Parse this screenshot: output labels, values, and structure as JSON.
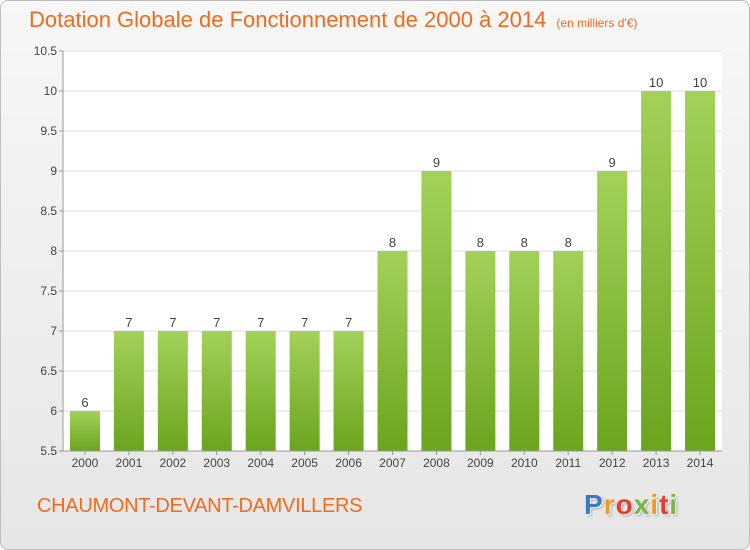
{
  "header": {
    "title": "Dotation Globale de Fonctionnement de 2000 à 2014",
    "subtitle": "(en milliers d'€)"
  },
  "commune": "CHAUMONT-DEVANT-DAMVILLERS",
  "logo": {
    "letters": [
      "P",
      "r",
      "o",
      "x",
      "i",
      "t",
      "i"
    ],
    "colors": [
      "#3a78c9",
      "#f29a1e",
      "#e63d2f",
      "#74b843",
      "#f29a1e",
      "#e63d2f",
      "#74b843"
    ]
  },
  "chart_data": {
    "type": "bar",
    "title": "Dotation Globale de Fonctionnement de 2000 à 2014",
    "categories": [
      "2000",
      "2001",
      "2002",
      "2003",
      "2004",
      "2005",
      "2006",
      "2007",
      "2008",
      "2009",
      "2010",
      "2011",
      "2012",
      "2013",
      "2014"
    ],
    "values": [
      6,
      7,
      7,
      7,
      7,
      7,
      7,
      8,
      9,
      8,
      8,
      8,
      9,
      10,
      10
    ],
    "data_labels": [
      "6",
      "7",
      "7",
      "7",
      "7",
      "7",
      "7",
      "8",
      "9",
      "8",
      "8",
      "8",
      "9",
      "10",
      "10"
    ],
    "ylim": [
      5.5,
      10.5
    ],
    "yticks": [
      5.5,
      6,
      6.5,
      7,
      7.5,
      8,
      8.5,
      9,
      9.5,
      10,
      10.5
    ],
    "ytick_labels": [
      "5.5",
      "6",
      "6.5",
      "7",
      "7.5",
      "8",
      "8.5",
      "9",
      "9.5",
      "10",
      "10.5"
    ],
    "grid": true,
    "bar_color_top": "#a3d15a",
    "bar_color_bottom": "#6aa51d"
  }
}
